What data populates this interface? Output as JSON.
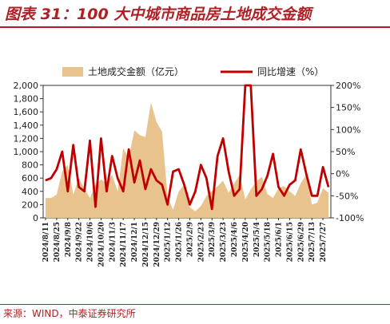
{
  "header": {
    "title": "图表 31：100 大中城市商品房土地成交金额"
  },
  "footer": {
    "source": "来源：WIND，中泰证券研究所"
  },
  "colors": {
    "area": "#e8c38e",
    "line": "#c00000",
    "accent": "#b01f24"
  },
  "chart_data": {
    "type": "area",
    "title": "",
    "legend_position": "top",
    "grid": false,
    "x": [
      "2024/8/11",
      "2024/8/18",
      "2024/8/25",
      "2024/9/1",
      "2024/9/8",
      "2024/9/15",
      "2024/9/22",
      "2024/9/29",
      "2024/10/6",
      "2024/10/13",
      "2024/10/20",
      "2024/10/27",
      "2024/11/3",
      "2024/11/10",
      "2024/11/17",
      "2024/11/24",
      "2024/12/1",
      "2024/12/8",
      "2024/12/15",
      "2024/12/22",
      "2024/12/29",
      "2025/1/5",
      "2025/1/12",
      "2025/1/19",
      "2025/1/26",
      "2025/2/2",
      "2025/2/9",
      "2025/2/16",
      "2025/2/23",
      "2025/3/2",
      "2025/3/9",
      "2025/3/16",
      "2025/3/23",
      "2025/3/30",
      "2025/4/6",
      "2025/4/13",
      "2025/4/20",
      "2025/4/27",
      "2025/5/4",
      "2025/5/11",
      "2025/5/18",
      "2025/5/25",
      "2025/6/1",
      "2025/6/8",
      "2025/6/15",
      "2025/6/22",
      "2025/6/29",
      "2025/7/6",
      "2025/7/13",
      "2025/7/20",
      "2025/7/27",
      "2025/8/3"
    ],
    "x_tick_labels": [
      "2024/8/11",
      "2024/8/25",
      "2024/9/8",
      "2024/9/22",
      "2024/10/6",
      "2024/10/20",
      "2024/11/3",
      "2024/11/17",
      "2024/12/1",
      "2024/12/15",
      "2024/12/29",
      "2025/1/12",
      "2025/1/26",
      "2025/2/9",
      "2025/2/23",
      "2025/3/9",
      "2025/3/23",
      "2025/4/6",
      "2025/4/20",
      "2025/5/4",
      "2025/5/18",
      "2025/6/1",
      "2025/6/15",
      "2025/6/29",
      "2025/7/13",
      "2025/7/27"
    ],
    "y_left": {
      "label": "",
      "ylim": [
        0,
        2000
      ],
      "ticks": [
        "0",
        "200",
        "400",
        "600",
        "800",
        "1,000",
        "1,200",
        "1,400",
        "1,600",
        "1,800",
        "2,000"
      ]
    },
    "y_right": {
      "label": "",
      "ylim": [
        -100,
        200
      ],
      "ticks": [
        "-100%",
        "-50%",
        "0%",
        "50%",
        "100%",
        "150%",
        "200%"
      ]
    },
    "series": [
      {
        "name": "土地成交金额（亿元）",
        "type": "area",
        "axis": "left",
        "values": [
          300,
          300,
          350,
          700,
          800,
          350,
          600,
          450,
          300,
          500,
          580,
          520,
          650,
          400,
          1050,
          900,
          1320,
          1250,
          1220,
          1740,
          1450,
          1300,
          320,
          120,
          400,
          500,
          160,
          100,
          180,
          330,
          400,
          480,
          560,
          380,
          520,
          650,
          280,
          430,
          550,
          620,
          360,
          300,
          450,
          480,
          400,
          330,
          520,
          650,
          200,
          230,
          450,
          380
        ]
      },
      {
        "name": "同比增速（%）",
        "type": "line",
        "axis": "right",
        "values": [
          -15,
          -10,
          10,
          50,
          -40,
          65,
          -30,
          -40,
          75,
          -75,
          80,
          -40,
          40,
          -10,
          -40,
          55,
          -20,
          30,
          -35,
          10,
          -15,
          -25,
          -70,
          5,
          10,
          -25,
          -70,
          -40,
          20,
          -10,
          -80,
          40,
          80,
          5,
          -50,
          -35,
          205,
          205,
          -50,
          -35,
          -5,
          45,
          -30,
          -50,
          -25,
          -15,
          55,
          0,
          -50,
          -50,
          15,
          -30
        ]
      }
    ]
  }
}
